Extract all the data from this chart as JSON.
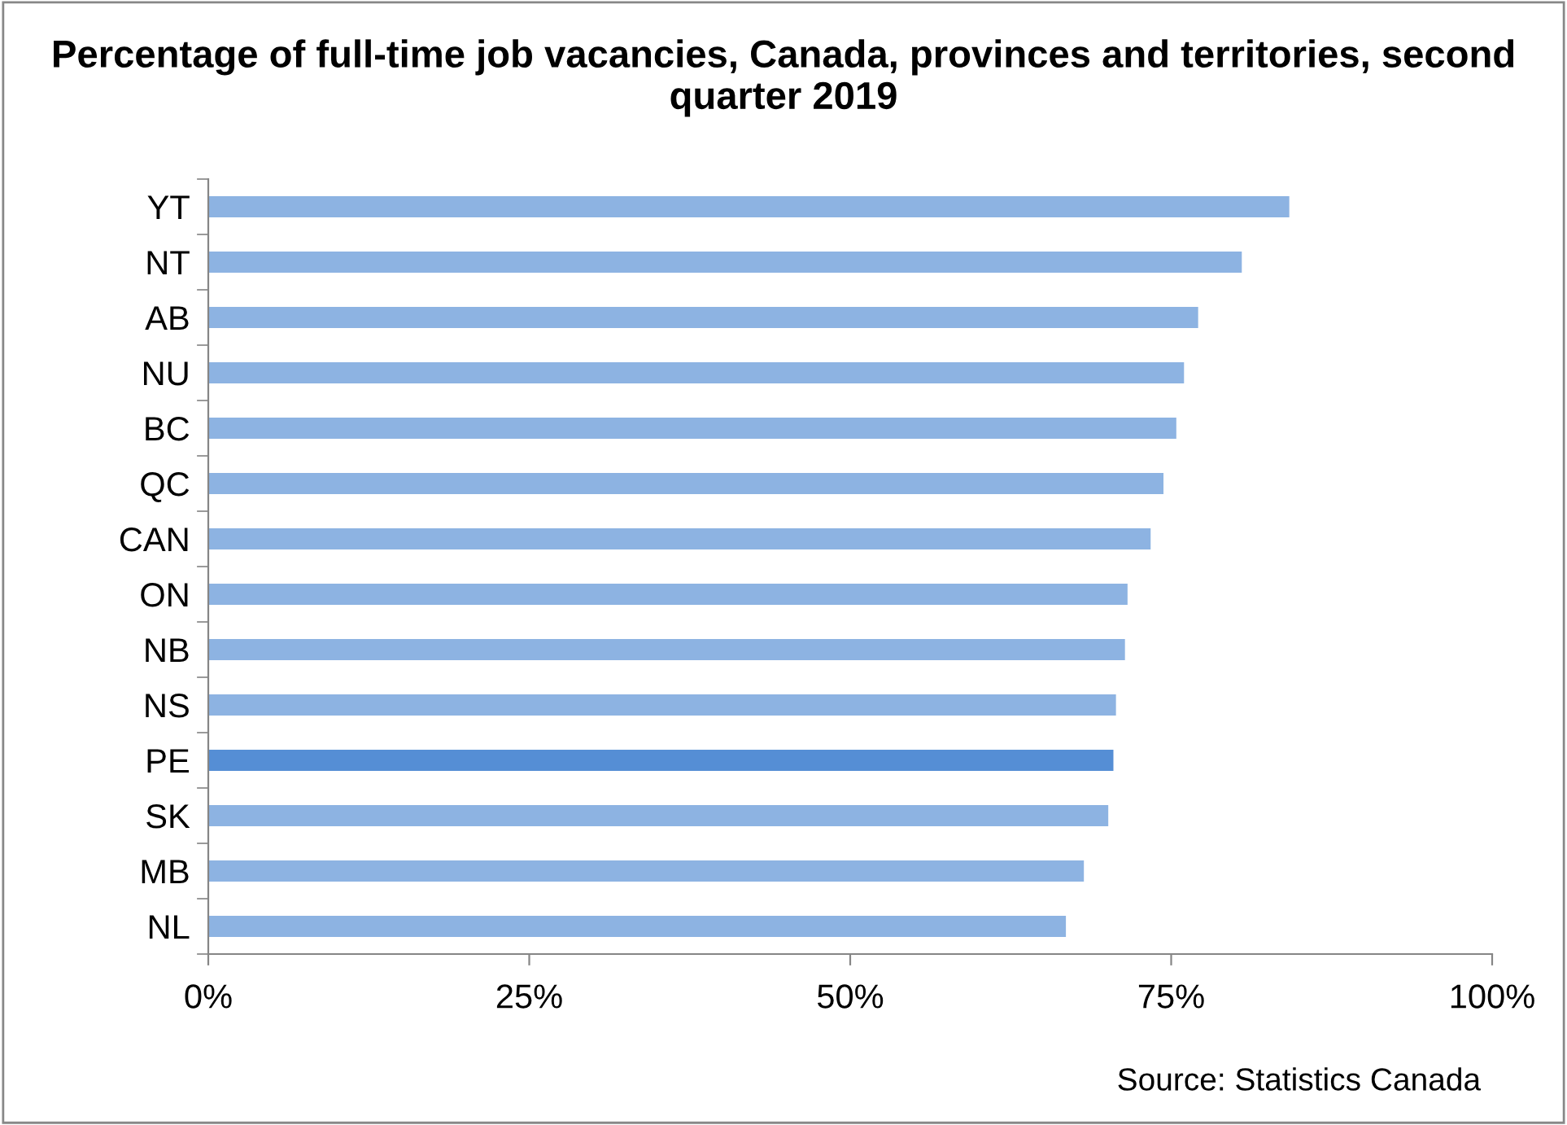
{
  "chart_data": {
    "type": "bar",
    "orientation": "horizontal",
    "title": "Percentage of full-time job vacancies, Canada, provinces and territories, second quarter 2019",
    "categories": [
      "YT",
      "NT",
      "AB",
      "NU",
      "BC",
      "QC",
      "CAN",
      "ON",
      "NB",
      "NS",
      "PE",
      "SK",
      "MB",
      "NL"
    ],
    "values": [
      84.2,
      80.5,
      77.1,
      76.0,
      75.4,
      74.4,
      73.4,
      71.6,
      71.4,
      70.7,
      70.5,
      70.1,
      68.2,
      66.8
    ],
    "colors": [
      "#8db3e2",
      "#8db3e2",
      "#8db3e2",
      "#8db3e2",
      "#8db3e2",
      "#8db3e2",
      "#8db3e2",
      "#8db3e2",
      "#8db3e2",
      "#8db3e2",
      "#558ed5",
      "#8db3e2",
      "#8db3e2",
      "#8db3e2"
    ],
    "xlim": [
      0,
      100
    ],
    "xticks": [
      {
        "value": 0,
        "label": "0%"
      },
      {
        "value": 25,
        "label": "25%"
      },
      {
        "value": 50,
        "label": "50%"
      },
      {
        "value": 75,
        "label": "75%"
      },
      {
        "value": 100,
        "label": "100%"
      }
    ],
    "grid": false,
    "legend": false,
    "annotations": [
      "Source: Statistics Canada"
    ]
  }
}
